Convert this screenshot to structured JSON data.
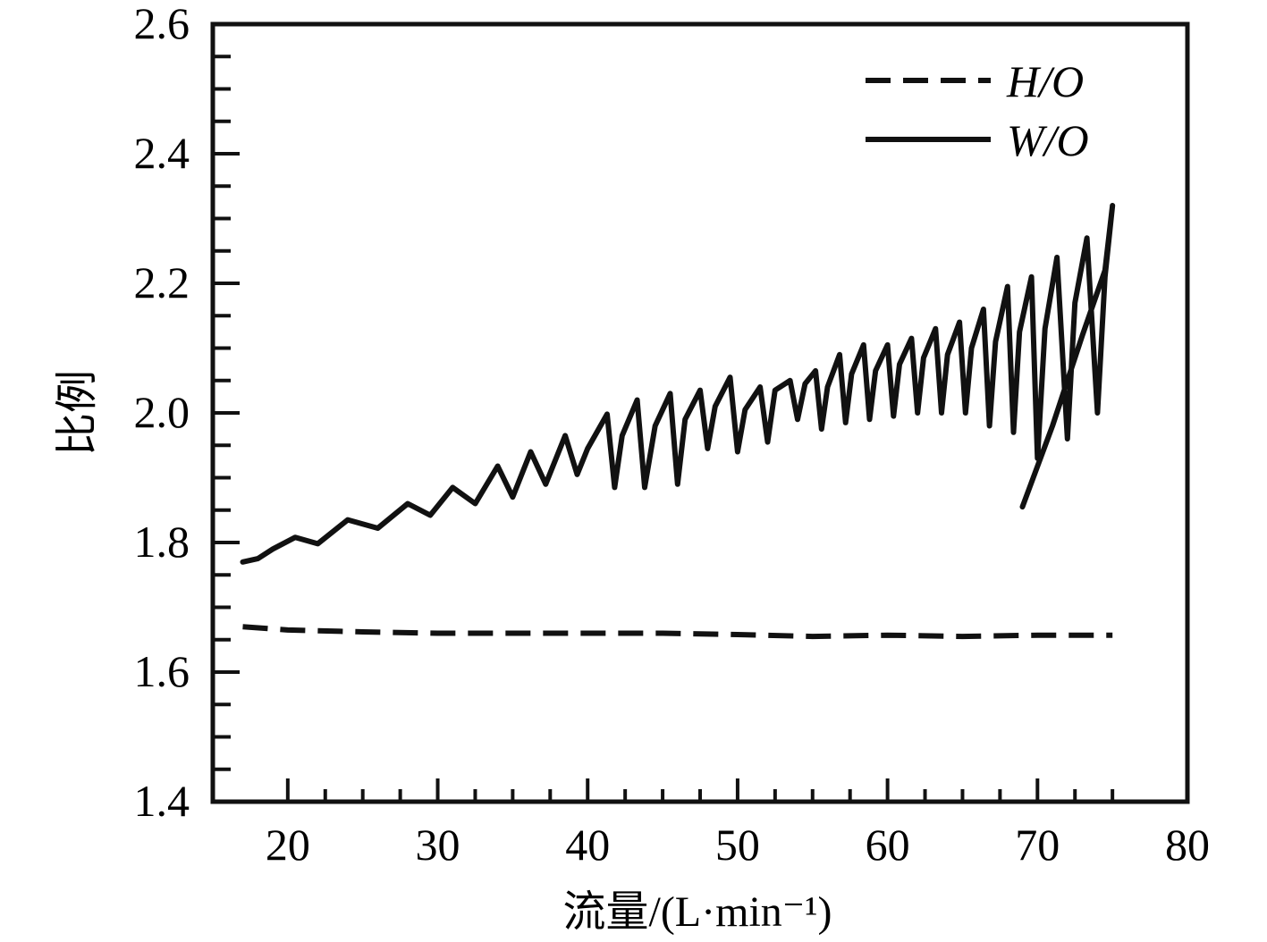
{
  "chart_data": {
    "type": "line",
    "xlabel": "流量/(L·min⁻¹)",
    "ylabel": "比例",
    "xlim": [
      15,
      80
    ],
    "ylim": [
      1.4,
      2.6
    ],
    "xticks": [
      "20",
      "30",
      "40",
      "50",
      "60",
      "70",
      "80"
    ],
    "yticks": [
      "1.4",
      "1.6",
      "1.8",
      "2.0",
      "2.2",
      "2.4",
      "2.6"
    ],
    "legend_position": "top-right",
    "grid": false,
    "series": [
      {
        "name": "H/O",
        "style": "dashed",
        "color": "#111111",
        "x": [
          17,
          20,
          25,
          30,
          35,
          40,
          45,
          50,
          55,
          60,
          65,
          70,
          75
        ],
        "y": [
          1.67,
          1.665,
          1.662,
          1.66,
          1.66,
          1.66,
          1.66,
          1.658,
          1.655,
          1.657,
          1.655,
          1.657,
          1.657
        ]
      },
      {
        "name": "W/O",
        "style": "solid",
        "color": "#111111",
        "x": [
          17,
          18,
          19,
          20.5,
          22,
          24,
          26,
          28,
          29.5,
          31,
          32.5,
          34,
          35,
          36.2,
          37.2,
          38.5,
          39.3,
          40,
          41.3,
          41.8,
          42.3,
          43.3,
          43.8,
          44.5,
          45.5,
          46,
          46.5,
          47.5,
          48,
          48.5,
          49.5,
          50,
          50.5,
          51.5,
          52,
          52.5,
          53.5,
          54,
          54.5,
          55.2,
          55.6,
          56,
          56.8,
          57.2,
          57.6,
          58.4,
          58.8,
          59.2,
          60,
          60.4,
          60.8,
          61.6,
          62,
          62.4,
          63.2,
          63.6,
          64,
          64.8,
          65.2,
          65.6,
          66.4,
          66.8,
          67.2,
          68,
          68.4,
          68.8,
          69.6,
          70,
          70.5,
          71.3,
          72,
          72.5,
          73.3,
          74,
          74.5,
          75,
          74.5,
          73,
          71,
          69.4,
          69
        ],
        "y": [
          1.77,
          1.775,
          1.79,
          1.808,
          1.798,
          1.835,
          1.822,
          1.86,
          1.842,
          1.885,
          1.86,
          1.918,
          1.87,
          1.94,
          1.89,
          1.965,
          1.905,
          1.945,
          1.998,
          1.885,
          1.965,
          2.02,
          1.885,
          1.98,
          2.03,
          1.89,
          1.99,
          2.035,
          1.945,
          2.01,
          2.055,
          1.94,
          2.005,
          2.04,
          1.955,
          2.035,
          2.05,
          1.99,
          2.045,
          2.065,
          1.975,
          2.04,
          2.09,
          1.985,
          2.06,
          2.105,
          1.99,
          2.065,
          2.105,
          1.995,
          2.075,
          2.115,
          2.0,
          2.085,
          2.13,
          2.0,
          2.09,
          2.14,
          2.0,
          2.1,
          2.16,
          1.98,
          2.11,
          2.195,
          1.97,
          2.125,
          2.21,
          1.93,
          2.13,
          2.24,
          1.96,
          2.17,
          2.27,
          2.0,
          2.21,
          2.32,
          2.22,
          2.12,
          1.98,
          1.88,
          1.855
        ]
      }
    ]
  }
}
